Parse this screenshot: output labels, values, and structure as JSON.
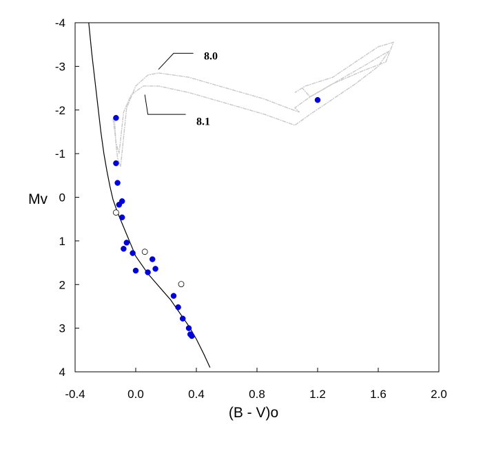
{
  "chart_data": {
    "type": "scatter",
    "title": "",
    "xlabel": "(B - V)o",
    "ylabel": "Mv",
    "xlim": [
      -0.4,
      2.0
    ],
    "ylim": [
      -4,
      4
    ],
    "y_inverted": true,
    "x_ticks": [
      "-0.4",
      "0.0",
      "0.4",
      "0.8",
      "1.2",
      "1.6",
      "2.0"
    ],
    "y_ticks": [
      "-4",
      "-3",
      "-2",
      "-1",
      "0",
      "1",
      "2",
      "3",
      "4"
    ],
    "grid": false,
    "colors": {
      "filled": "#0000dd",
      "isochrone": "#c8c8c8",
      "zams": "#000000"
    },
    "series": [
      {
        "marker": "filled-circle",
        "x": [
          -0.13,
          -0.13,
          -0.12,
          -0.11,
          -0.09,
          -0.09,
          -0.08,
          -0.06,
          -0.02,
          0.0,
          0.08,
          0.11,
          0.13,
          0.25,
          0.28,
          0.31,
          0.35,
          0.36,
          0.37,
          1.2
        ],
        "y": [
          -1.82,
          -0.78,
          -0.33,
          0.17,
          0.09,
          0.46,
          1.18,
          1.04,
          1.28,
          1.68,
          1.72,
          1.42,
          1.64,
          2.26,
          2.52,
          2.78,
          3.0,
          3.14,
          3.18,
          -2.23
        ]
      },
      {
        "marker": "open-circle",
        "x": [
          -0.13,
          0.06,
          0.3
        ],
        "y": [
          0.35,
          1.25,
          1.99
        ]
      },
      {
        "marker": "line",
        "x": [
          -0.31,
          -0.29,
          -0.27,
          -0.25,
          -0.23,
          -0.21,
          -0.19,
          -0.17,
          -0.15,
          -0.12,
          -0.09,
          -0.06,
          -0.03,
          0.0,
          0.04,
          0.08,
          0.13,
          0.18,
          0.23,
          0.27,
          0.31,
          0.35,
          0.4,
          0.45,
          0.49
        ],
        "y": [
          -4.0,
          -3.3,
          -2.7,
          -2.1,
          -1.5,
          -1.0,
          -0.6,
          -0.25,
          0.05,
          0.35,
          0.6,
          0.85,
          1.1,
          1.35,
          1.55,
          1.75,
          1.95,
          2.15,
          2.35,
          2.55,
          2.75,
          2.95,
          3.25,
          3.6,
          3.9
        ]
      },
      {
        "name": "8.0",
        "marker": "isochrone",
        "x": [
          -0.14,
          -0.135,
          -0.13,
          -0.12,
          -0.1,
          -0.06,
          0.0,
          0.08,
          0.15,
          0.35,
          0.6,
          0.85,
          1.0,
          1.08,
          1.05,
          1.15,
          1.3,
          1.5,
          1.65,
          1.7,
          1.6,
          1.45,
          1.3,
          1.12,
          1.05
        ],
        "y": [
          -1.8,
          -1.5,
          -1.2,
          -0.9,
          -0.7,
          -2.05,
          -2.55,
          -2.8,
          -2.85,
          -2.75,
          -2.5,
          -2.25,
          -2.05,
          -1.95,
          -2.05,
          -2.3,
          -2.6,
          -2.9,
          -3.1,
          -3.55,
          -3.45,
          -3.1,
          -2.75,
          -2.55,
          -2.4
        ]
      },
      {
        "name": "8.1",
        "marker": "isochrone",
        "x": [
          -0.15,
          -0.14,
          -0.13,
          -0.11,
          -0.08,
          -0.03,
          0.05,
          0.15,
          0.35,
          0.6,
          0.85,
          1.05,
          1.15,
          1.3,
          1.45,
          1.6,
          1.67,
          1.5,
          1.3,
          1.15,
          1.1
        ],
        "y": [
          -1.8,
          -1.55,
          -1.25,
          -1.0,
          -1.95,
          -2.35,
          -2.55,
          -2.55,
          -2.4,
          -2.15,
          -1.9,
          -1.65,
          -1.9,
          -2.25,
          -2.6,
          -3.0,
          -3.35,
          -3.0,
          -2.6,
          -2.3,
          -2.5
        ]
      }
    ],
    "annotations": [
      {
        "text": "8.0",
        "x": 0.45,
        "y": -3.25
      },
      {
        "text": "8.1",
        "x": 0.4,
        "y": -1.75
      }
    ]
  }
}
